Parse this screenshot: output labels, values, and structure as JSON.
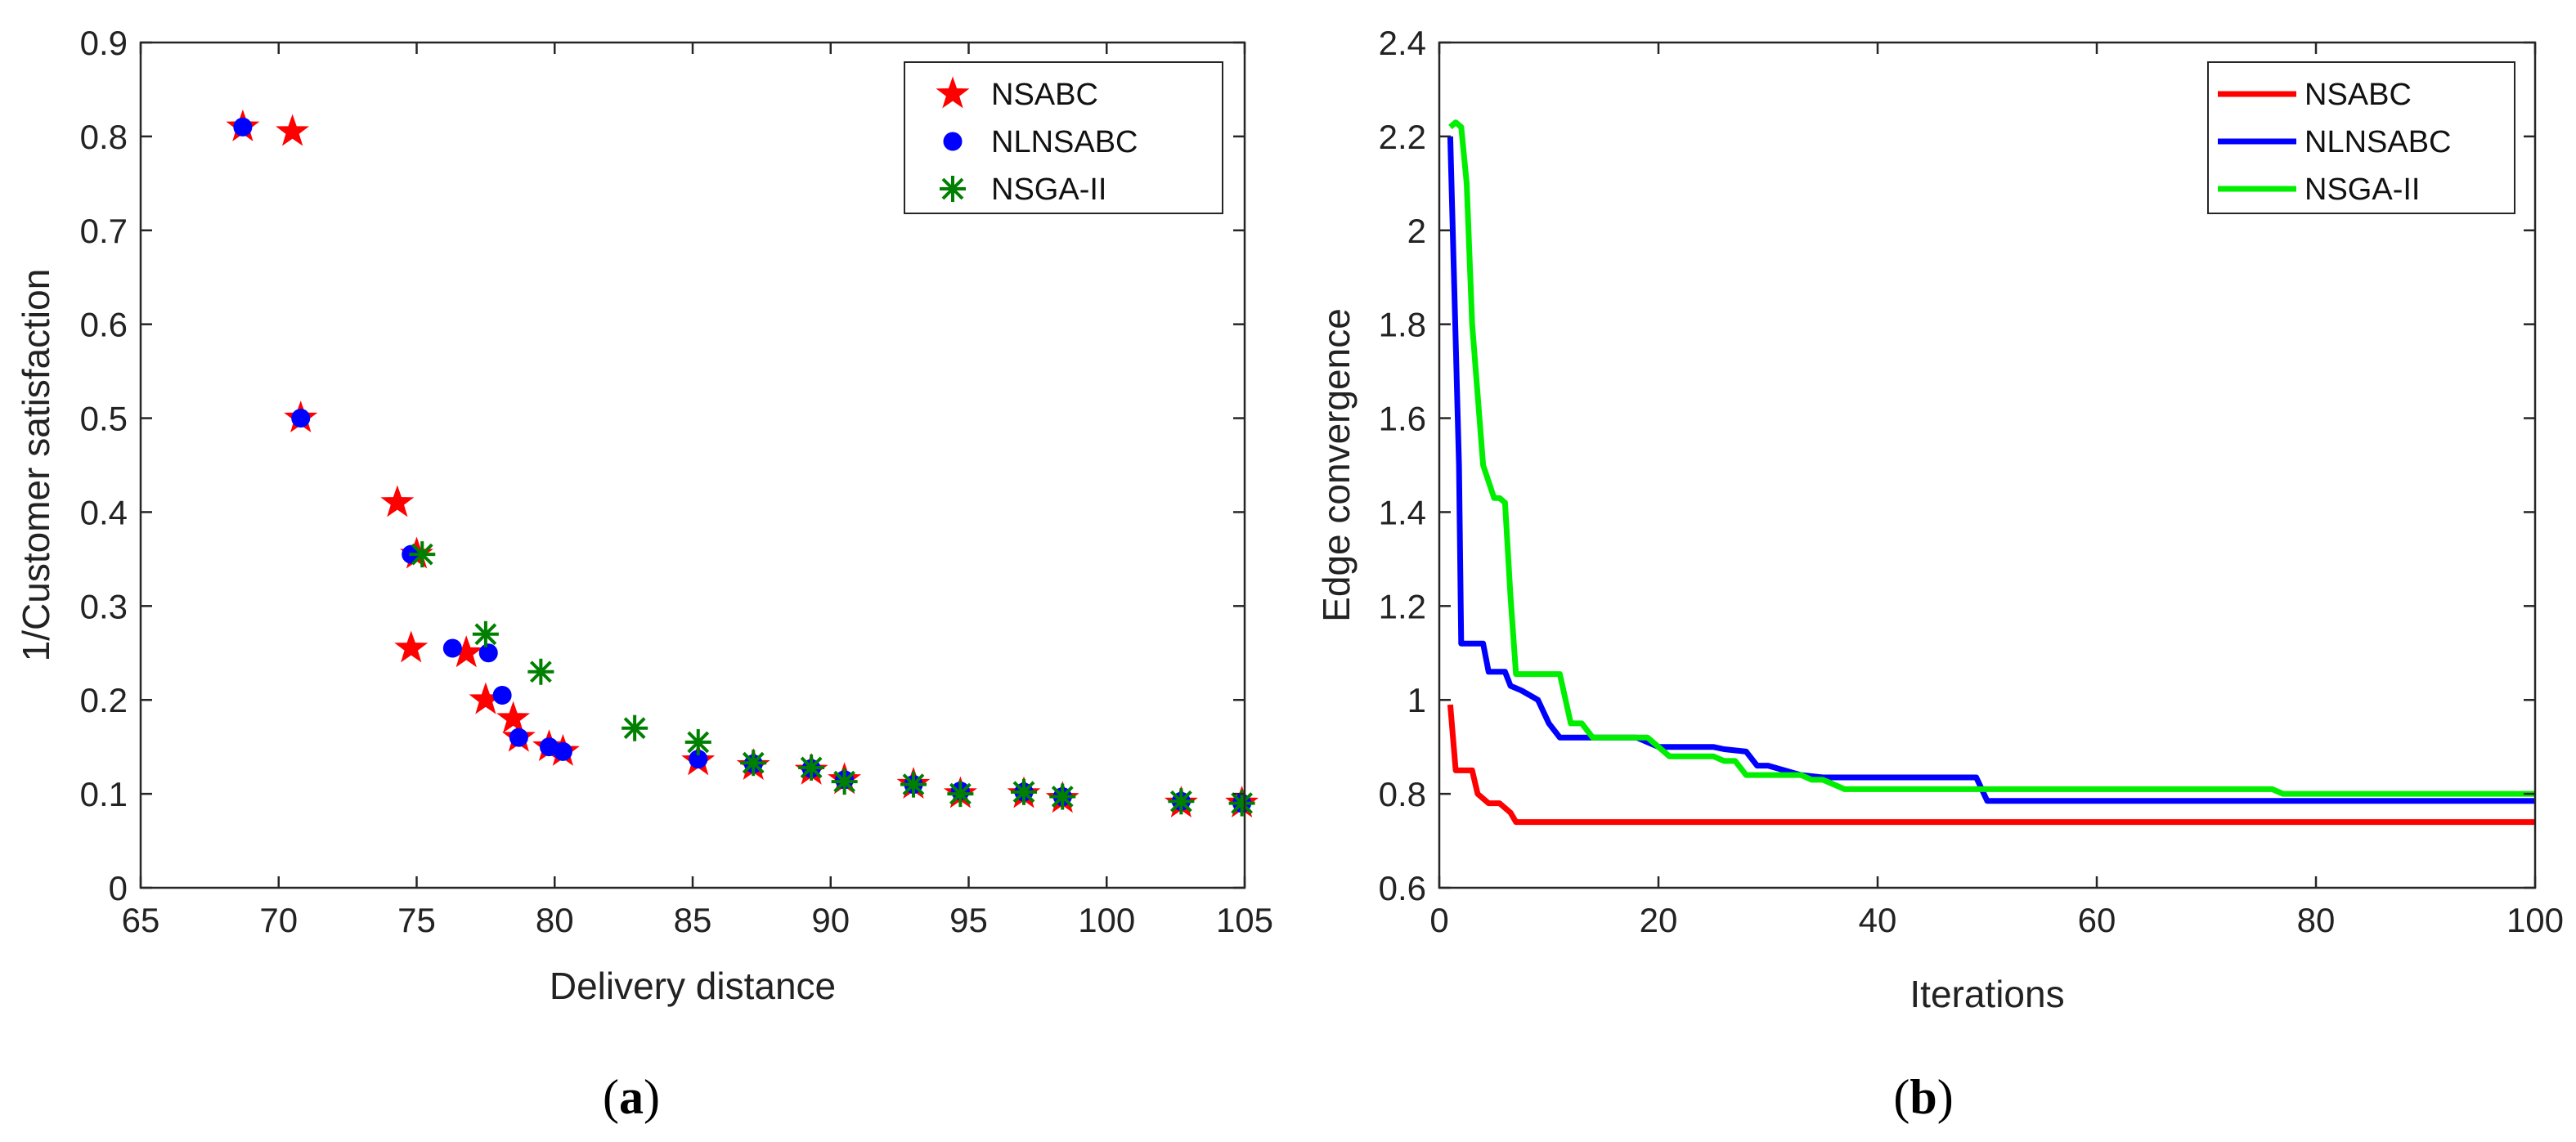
{
  "chart_data": [
    {
      "type": "scatter",
      "caption_open": "(",
      "caption_letter": "a",
      "caption_close": ")",
      "xlabel": "Delivery distance",
      "ylabel": "1/Customer satisfaction",
      "xlim": [
        65,
        105
      ],
      "ylim": [
        0,
        0.9
      ],
      "xticks": [
        65,
        70,
        75,
        80,
        85,
        90,
        95,
        100,
        105
      ],
      "yticks": [
        0,
        0.1,
        0.2,
        0.3,
        0.4,
        0.5,
        0.6,
        0.7,
        0.8,
        0.9
      ],
      "xtick_labels": [
        "65",
        "70",
        "75",
        "80",
        "85",
        "90",
        "95",
        "100",
        "105"
      ],
      "ytick_labels": [
        "0",
        "0.1",
        "0.2",
        "0.3",
        "0.4",
        "0.5",
        "0.6",
        "0.7",
        "0.8",
        "0.9"
      ],
      "legend_position": "top-right",
      "series": [
        {
          "name": "NSABC",
          "marker": "star",
          "color": "#ff0000",
          "x": [
            68.7,
            70.5,
            70.8,
            74.3,
            75.0,
            74.8,
            76.8,
            77.5,
            78.5,
            78.7,
            79.8,
            80.3,
            85.2,
            87.2,
            89.3,
            90.5,
            93.0,
            94.7,
            97.0,
            98.4,
            102.7,
            104.9
          ],
          "y": [
            0.81,
            0.805,
            0.5,
            0.41,
            0.355,
            0.255,
            0.25,
            0.2,
            0.18,
            0.16,
            0.15,
            0.145,
            0.135,
            0.13,
            0.125,
            0.115,
            0.11,
            0.1,
            0.1,
            0.095,
            0.09,
            0.09
          ]
        },
        {
          "name": "NLNSABC",
          "marker": "circle",
          "color": "#0000ff",
          "x": [
            68.7,
            70.8,
            74.8,
            76.3,
            77.6,
            78.1,
            78.7,
            79.8,
            80.3,
            85.2,
            87.2,
            89.3,
            90.5,
            93.0,
            94.7,
            97.0,
            98.4,
            102.7,
            104.9
          ],
          "y": [
            0.81,
            0.5,
            0.355,
            0.255,
            0.25,
            0.205,
            0.16,
            0.15,
            0.145,
            0.137,
            0.132,
            0.127,
            0.115,
            0.11,
            0.103,
            0.102,
            0.097,
            0.092,
            0.09
          ]
        },
        {
          "name": "NSGA-II",
          "marker": "asterisk",
          "color": "#008000",
          "x": [
            75.2,
            77.5,
            79.5,
            82.9,
            85.2,
            87.2,
            89.3,
            90.5,
            93.0,
            94.7,
            97.0,
            98.4,
            102.7,
            104.9
          ],
          "y": [
            0.355,
            0.27,
            0.23,
            0.17,
            0.155,
            0.133,
            0.128,
            0.113,
            0.11,
            0.1,
            0.102,
            0.097,
            0.092,
            0.09
          ]
        }
      ]
    },
    {
      "type": "line",
      "caption_open": "(",
      "caption_letter": "b",
      "caption_close": ")",
      "xlabel": "Iterations",
      "ylabel": "Edge convergence",
      "xlim": [
        0,
        100
      ],
      "ylim": [
        0.6,
        2.4
      ],
      "xticks": [
        0,
        20,
        40,
        60,
        80,
        100
      ],
      "yticks": [
        0.6,
        0.8,
        1.0,
        1.2,
        1.4,
        1.6,
        1.8,
        2.0,
        2.2,
        2.4
      ],
      "xtick_labels": [
        "0",
        "20",
        "40",
        "60",
        "80",
        "100"
      ],
      "ytick_labels": [
        "0.6",
        "0.8",
        "1",
        "1.2",
        "1.4",
        "1.6",
        "1.8",
        "2",
        "2.2",
        "2.4"
      ],
      "legend_position": "top-right",
      "series": [
        {
          "name": "NSABC",
          "color": "#ff0000",
          "x": [
            1,
            1.5,
            2,
            3,
            3.5,
            4.5,
            5.5,
            6.5,
            7,
            100
          ],
          "y": [
            0.99,
            0.85,
            0.85,
            0.85,
            0.8,
            0.78,
            0.78,
            0.76,
            0.74,
            0.74
          ]
        },
        {
          "name": "NLNSABC",
          "color": "#0000ff",
          "x": [
            1,
            1.8,
            2,
            4,
            4.5,
            6,
            6.5,
            7.5,
            9,
            10,
            11,
            18,
            19,
            20,
            25,
            26,
            28,
            29,
            30,
            33,
            35,
            49,
            50,
            100
          ],
          "y": [
            2.2,
            1.5,
            1.12,
            1.12,
            1.06,
            1.06,
            1.03,
            1.02,
            1.0,
            0.95,
            0.92,
            0.92,
            0.91,
            0.9,
            0.9,
            0.895,
            0.89,
            0.86,
            0.86,
            0.84,
            0.835,
            0.835,
            0.785,
            0.785
          ]
        },
        {
          "name": "NSGA-II",
          "color": "#00ee00",
          "x": [
            1,
            1.5,
            2,
            2.5,
            3,
            4,
            5,
            5.5,
            6,
            6.5,
            7,
            11,
            12,
            13,
            14,
            19,
            20,
            21,
            25,
            26,
            27,
            28,
            33,
            34,
            35,
            36,
            37,
            76,
            77,
            100
          ],
          "y": [
            2.22,
            2.23,
            2.22,
            2.1,
            1.8,
            1.5,
            1.43,
            1.43,
            1.42,
            1.22,
            1.055,
            1.055,
            0.95,
            0.95,
            0.92,
            0.92,
            0.9,
            0.88,
            0.88,
            0.87,
            0.87,
            0.84,
            0.84,
            0.83,
            0.83,
            0.82,
            0.81,
            0.81,
            0.8,
            0.8
          ]
        }
      ]
    }
  ]
}
